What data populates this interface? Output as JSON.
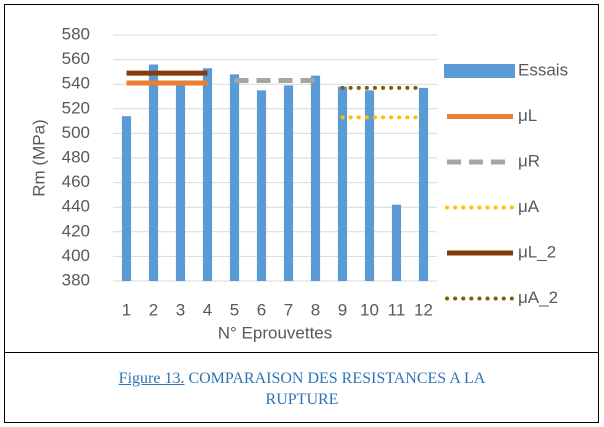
{
  "chart_data": {
    "type": "bar",
    "x_label": "N° Eprouvettes",
    "y_label": "Rm (MPa)",
    "categories": [
      "1",
      "2",
      "3",
      "4",
      "5",
      "6",
      "7",
      "8",
      "9",
      "10",
      "11",
      "12"
    ],
    "series": [
      {
        "name": "Essais",
        "type": "bar",
        "color": "#5b9bd5",
        "values": [
          514,
          556,
          539,
          553,
          548,
          535,
          539,
          547,
          538,
          535,
          442,
          537
        ]
      },
      {
        "name": "μL",
        "type": "line",
        "style": "solid",
        "color": "#ed7d31",
        "values": [
          541,
          541,
          541,
          541,
          null,
          null,
          null,
          null,
          null,
          null,
          null,
          null
        ]
      },
      {
        "name": "μR",
        "type": "line",
        "style": "dashed",
        "color": "#a5a5a5",
        "values": [
          null,
          null,
          null,
          null,
          543,
          543,
          543,
          543,
          null,
          null,
          null,
          null
        ]
      },
      {
        "name": "μA",
        "type": "line",
        "style": "dotted",
        "color": "#ffc000",
        "values": [
          null,
          null,
          null,
          null,
          null,
          null,
          null,
          null,
          513,
          513,
          513,
          513
        ]
      },
      {
        "name": "μL_2",
        "type": "line",
        "style": "solid",
        "color": "#843c0c",
        "values": [
          549,
          549,
          549,
          549,
          null,
          null,
          null,
          null,
          null,
          null,
          null,
          null
        ]
      },
      {
        "name": "μA_2",
        "type": "line",
        "style": "dotted",
        "color": "#7f6000",
        "values": [
          null,
          null,
          null,
          null,
          null,
          null,
          null,
          null,
          537,
          537,
          537,
          537
        ]
      }
    ],
    "ylim": [
      380,
      580
    ],
    "yticks": [
      380,
      400,
      420,
      440,
      460,
      480,
      500,
      520,
      540,
      560,
      580
    ],
    "grid": true,
    "legend": "right"
  },
  "caption": {
    "label": "Figure 13.",
    "text": "COMPARAISON DES RESISTANCES A LA RUPTURE"
  }
}
